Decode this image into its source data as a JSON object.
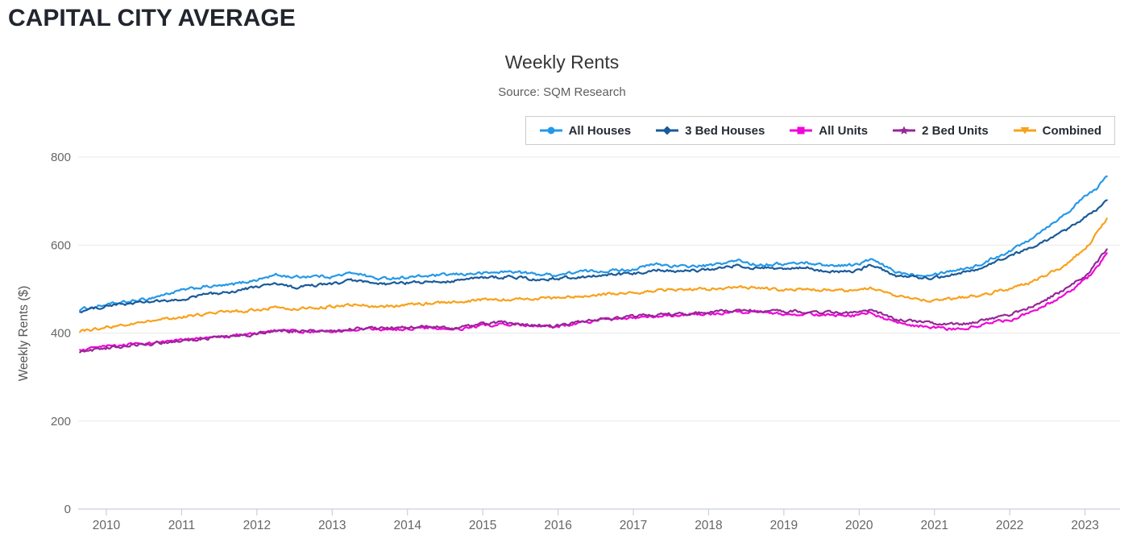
{
  "header": {
    "title": "CAPITAL CITY AVERAGE"
  },
  "chart_data": {
    "type": "line",
    "title": "Weekly Rents",
    "subtitle": "Source: SQM Research",
    "xlabel": "",
    "ylabel": "Weekly Rents ($)",
    "ylim": [
      0,
      800
    ],
    "yticks": [
      0,
      200,
      400,
      600,
      800
    ],
    "xticks": [
      2010,
      2011,
      2012,
      2013,
      2014,
      2015,
      2016,
      2017,
      2018,
      2019,
      2020,
      2021,
      2022,
      2023
    ],
    "x_range": [
      2009.65,
      2023.3
    ],
    "grid": "horizontal",
    "legend_position": "top-right",
    "colors": {
      "all_houses": "#2499E8",
      "three_bed_houses": "#1A5A9A",
      "all_units": "#F005D8",
      "two_bed_units": "#962896",
      "combined": "#F9A11B",
      "gridline": "#e9e9e9",
      "axis": "#c9d0da",
      "tick_label": "#666666"
    },
    "series": [
      {
        "name": "All Houses",
        "color": "#2499E8",
        "marker": "circle",
        "points": [
          [
            2009.65,
            454
          ],
          [
            2010,
            464
          ],
          [
            2010.5,
            476
          ],
          [
            2011,
            497
          ],
          [
            2011.3,
            505
          ],
          [
            2011.6,
            508
          ],
          [
            2012,
            521
          ],
          [
            2012.25,
            532
          ],
          [
            2012.5,
            527
          ],
          [
            2012.75,
            530
          ],
          [
            2013,
            528
          ],
          [
            2013.3,
            538
          ],
          [
            2013.6,
            523
          ],
          [
            2014,
            527
          ],
          [
            2014.5,
            532
          ],
          [
            2015,
            536
          ],
          [
            2015.4,
            540
          ],
          [
            2015.7,
            534
          ],
          [
            2016,
            532
          ],
          [
            2016.3,
            540
          ],
          [
            2016.6,
            541
          ],
          [
            2017,
            545
          ],
          [
            2017.3,
            557
          ],
          [
            2017.6,
            551
          ],
          [
            2018,
            553
          ],
          [
            2018.4,
            565
          ],
          [
            2018.6,
            556
          ],
          [
            2019,
            557
          ],
          [
            2019.3,
            560
          ],
          [
            2019.6,
            553
          ],
          [
            2020,
            556
          ],
          [
            2020.15,
            568
          ],
          [
            2020.5,
            538
          ],
          [
            2020.8,
            532
          ],
          [
            2021,
            535
          ],
          [
            2021.3,
            544
          ],
          [
            2021.6,
            554
          ],
          [
            2021.8,
            572
          ],
          [
            2022,
            586
          ],
          [
            2022.25,
            612
          ],
          [
            2022.5,
            642
          ],
          [
            2022.75,
            672
          ],
          [
            2023,
            710
          ],
          [
            2023.15,
            728
          ],
          [
            2023.3,
            757
          ]
        ]
      },
      {
        "name": "3 Bed Houses",
        "color": "#1A5A9A",
        "marker": "diamond",
        "points": [
          [
            2009.65,
            449
          ],
          [
            2010,
            462
          ],
          [
            2010.5,
            470
          ],
          [
            2011,
            475
          ],
          [
            2011.3,
            488
          ],
          [
            2011.6,
            492
          ],
          [
            2012,
            505
          ],
          [
            2012.25,
            512
          ],
          [
            2012.5,
            503
          ],
          [
            2012.75,
            508
          ],
          [
            2013,
            512
          ],
          [
            2013.3,
            520
          ],
          [
            2013.6,
            510
          ],
          [
            2014,
            514
          ],
          [
            2014.5,
            517
          ],
          [
            2015,
            526
          ],
          [
            2015.4,
            528
          ],
          [
            2015.7,
            521
          ],
          [
            2016,
            524
          ],
          [
            2016.5,
            530
          ],
          [
            2017,
            535
          ],
          [
            2017.3,
            544
          ],
          [
            2017.6,
            540
          ],
          [
            2018,
            544
          ],
          [
            2018.4,
            554
          ],
          [
            2018.6,
            547
          ],
          [
            2019,
            546
          ],
          [
            2019.3,
            548
          ],
          [
            2019.6,
            539
          ],
          [
            2020,
            541
          ],
          [
            2020.15,
            556
          ],
          [
            2020.5,
            530
          ],
          [
            2020.8,
            526
          ],
          [
            2021,
            526
          ],
          [
            2021.3,
            536
          ],
          [
            2021.6,
            546
          ],
          [
            2021.8,
            560
          ],
          [
            2022,
            576
          ],
          [
            2022.25,
            592
          ],
          [
            2022.5,
            612
          ],
          [
            2022.75,
            634
          ],
          [
            2023,
            662
          ],
          [
            2023.15,
            678
          ],
          [
            2023.3,
            706
          ]
        ]
      },
      {
        "name": "All Units",
        "color": "#F005D8",
        "marker": "square",
        "points": [
          [
            2009.65,
            360
          ],
          [
            2010,
            369
          ],
          [
            2010.5,
            376
          ],
          [
            2011,
            384
          ],
          [
            2011.5,
            391
          ],
          [
            2012,
            399
          ],
          [
            2012.2,
            406
          ],
          [
            2012.5,
            404
          ],
          [
            2012.8,
            402
          ],
          [
            2013,
            404
          ],
          [
            2013.3,
            409
          ],
          [
            2013.6,
            407
          ],
          [
            2014,
            409
          ],
          [
            2014.3,
            413
          ],
          [
            2014.6,
            406
          ],
          [
            2015,
            417
          ],
          [
            2015.3,
            420
          ],
          [
            2015.6,
            416
          ],
          [
            2015.9,
            413
          ],
          [
            2016.1,
            418
          ],
          [
            2016.5,
            428
          ],
          [
            2017,
            434
          ],
          [
            2017.5,
            440
          ],
          [
            2018,
            444
          ],
          [
            2018.3,
            447
          ],
          [
            2018.6,
            449
          ],
          [
            2019,
            444
          ],
          [
            2019.5,
            442
          ],
          [
            2020,
            440
          ],
          [
            2020.15,
            447
          ],
          [
            2020.5,
            422
          ],
          [
            2020.8,
            416
          ],
          [
            2021,
            412
          ],
          [
            2021.3,
            409
          ],
          [
            2021.6,
            417
          ],
          [
            2021.8,
            425
          ],
          [
            2022,
            429
          ],
          [
            2022.3,
            450
          ],
          [
            2022.5,
            466
          ],
          [
            2022.75,
            488
          ],
          [
            2023,
            520
          ],
          [
            2023.1,
            537
          ],
          [
            2023.2,
            558
          ],
          [
            2023.3,
            582
          ]
        ]
      },
      {
        "name": "2 Bed Units",
        "color": "#962896",
        "marker": "star",
        "points": [
          [
            2009.65,
            357
          ],
          [
            2010,
            366
          ],
          [
            2010.5,
            374
          ],
          [
            2011,
            382
          ],
          [
            2011.5,
            390
          ],
          [
            2012,
            398
          ],
          [
            2012.2,
            405
          ],
          [
            2012.5,
            404
          ],
          [
            2013,
            406
          ],
          [
            2013.3,
            411
          ],
          [
            2014,
            412
          ],
          [
            2014.3,
            415
          ],
          [
            2014.6,
            409
          ],
          [
            2015,
            421
          ],
          [
            2015.3,
            424
          ],
          [
            2015.6,
            419
          ],
          [
            2015.9,
            416
          ],
          [
            2016.1,
            420
          ],
          [
            2016.5,
            430
          ],
          [
            2017,
            438
          ],
          [
            2017.5,
            443
          ],
          [
            2018,
            447
          ],
          [
            2018.5,
            452
          ],
          [
            2019,
            450
          ],
          [
            2019.5,
            447
          ],
          [
            2020,
            446
          ],
          [
            2020.15,
            452
          ],
          [
            2020.5,
            431
          ],
          [
            2020.8,
            426
          ],
          [
            2021,
            421
          ],
          [
            2021.3,
            419
          ],
          [
            2021.6,
            426
          ],
          [
            2021.8,
            434
          ],
          [
            2022,
            440
          ],
          [
            2022.3,
            462
          ],
          [
            2022.5,
            478
          ],
          [
            2022.75,
            500
          ],
          [
            2023,
            530
          ],
          [
            2023.1,
            548
          ],
          [
            2023.2,
            570
          ],
          [
            2023.3,
            595
          ]
        ]
      },
      {
        "name": "Combined",
        "color": "#F9A11B",
        "marker": "triangle-down",
        "points": [
          [
            2009.65,
            404
          ],
          [
            2010,
            413
          ],
          [
            2010.5,
            425
          ],
          [
            2011,
            437
          ],
          [
            2011.5,
            447
          ],
          [
            2012,
            452
          ],
          [
            2012.2,
            458
          ],
          [
            2012.5,
            455
          ],
          [
            2013,
            460
          ],
          [
            2013.3,
            466
          ],
          [
            2013.6,
            459
          ],
          [
            2014,
            465
          ],
          [
            2014.5,
            469
          ],
          [
            2015,
            476
          ],
          [
            2015.5,
            478
          ],
          [
            2016,
            480
          ],
          [
            2016.5,
            486
          ],
          [
            2017,
            492
          ],
          [
            2017.5,
            498
          ],
          [
            2018,
            500
          ],
          [
            2018.5,
            504
          ],
          [
            2019,
            499
          ],
          [
            2019.5,
            499
          ],
          [
            2020,
            495
          ],
          [
            2020.15,
            504
          ],
          [
            2020.5,
            483
          ],
          [
            2020.8,
            477
          ],
          [
            2021,
            474
          ],
          [
            2021.3,
            480
          ],
          [
            2021.6,
            486
          ],
          [
            2021.8,
            493
          ],
          [
            2022,
            501
          ],
          [
            2022.3,
            517
          ],
          [
            2022.5,
            533
          ],
          [
            2022.75,
            556
          ],
          [
            2023,
            592
          ],
          [
            2023.1,
            612
          ],
          [
            2023.2,
            636
          ],
          [
            2023.3,
            662
          ]
        ]
      }
    ]
  }
}
